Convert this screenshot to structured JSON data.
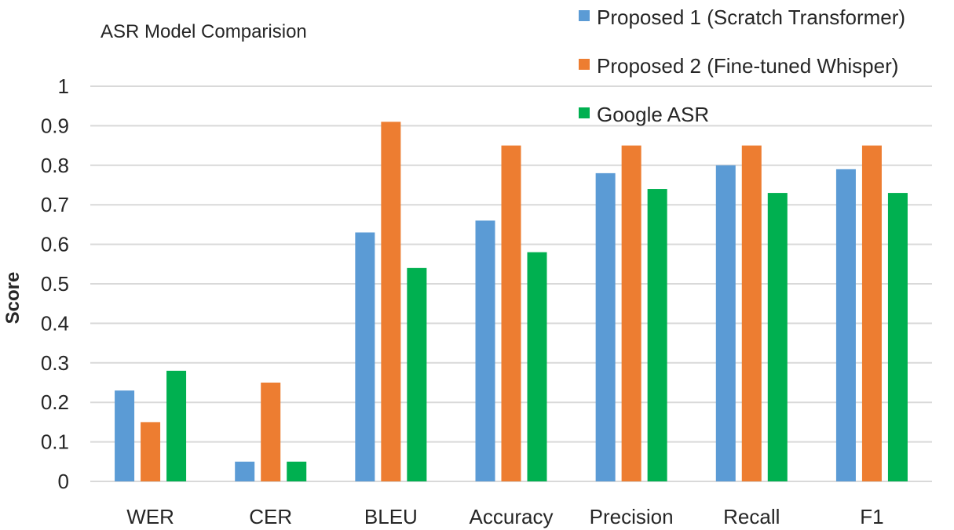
{
  "chart_data": {
    "type": "bar",
    "title": "ASR Model Comparision",
    "xlabel": "",
    "ylabel": "Score",
    "ylim": [
      0,
      1
    ],
    "yticks": [
      "0",
      "0.1",
      "0.2",
      "0.3",
      "0.4",
      "0.5",
      "0.6",
      "0.7",
      "0.8",
      "0.9",
      "1"
    ],
    "grid": true,
    "legend_position": "top-right",
    "categories": [
      "WER",
      "CER",
      "BLEU",
      "Accuracy",
      "Precision",
      "Recall",
      "F1"
    ],
    "series": [
      {
        "name": "Proposed 1 (Scratch Transformer)",
        "color": "#5b9bd5",
        "values": [
          0.23,
          0.05,
          0.63,
          0.66,
          0.78,
          0.8,
          0.79
        ]
      },
      {
        "name": "Proposed 2 (Fine-tuned Whisper)",
        "color": "#ed7d31",
        "values": [
          0.15,
          0.25,
          0.91,
          0.85,
          0.85,
          0.85,
          0.85
        ]
      },
      {
        "name": "Google ASR",
        "color": "#00b050",
        "values": [
          0.28,
          0.05,
          0.54,
          0.58,
          0.74,
          0.73,
          0.73
        ]
      }
    ]
  }
}
